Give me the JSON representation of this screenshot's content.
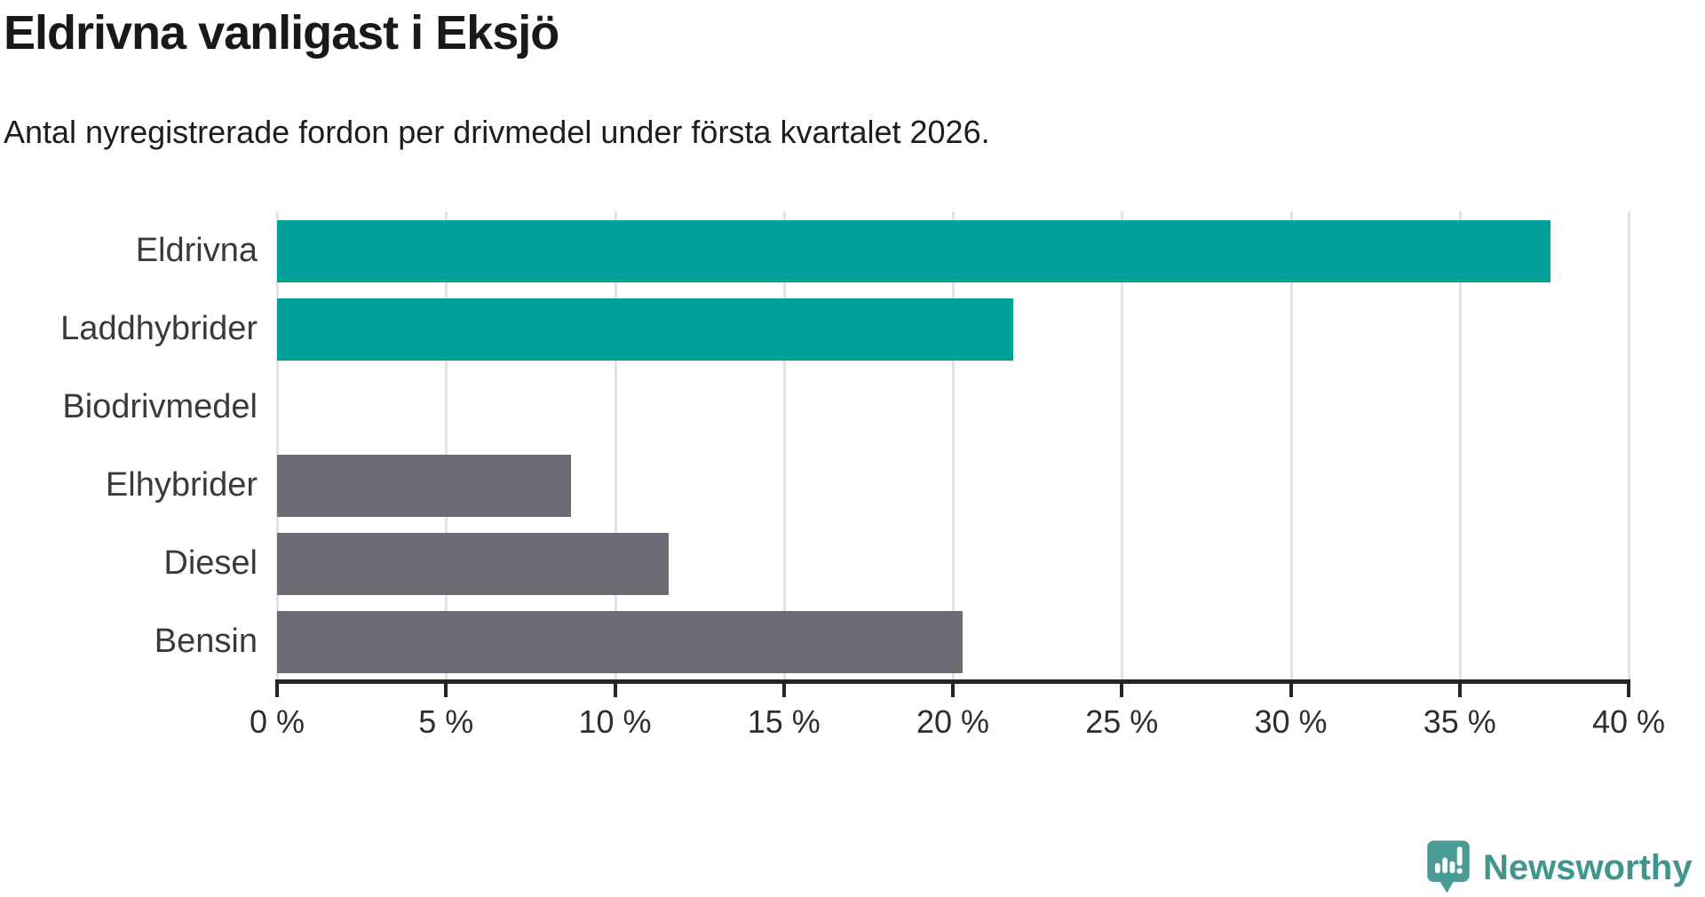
{
  "header": {
    "title": "Eldrivna vanligast i Eksjö",
    "subtitle": "Antal nyregistrerade fordon per drivmedel under första kvartalet 2026."
  },
  "chart_data": {
    "type": "bar",
    "orientation": "horizontal",
    "title": "Eldrivna vanligast i Eksjö",
    "subtitle": "Antal nyregistrerade fordon per drivmedel under första kvartalet 2026.",
    "categories": [
      "Eldrivna",
      "Laddhybrider",
      "Biodrivmedel",
      "Elhybrider",
      "Diesel",
      "Bensin"
    ],
    "values": [
      37.7,
      21.8,
      0,
      8.7,
      11.6,
      20.3
    ],
    "unit": "%",
    "bar_colors": [
      "#00a099",
      "#00a099",
      "#00a099",
      "#6c6c74",
      "#6c6c74",
      "#6c6c74"
    ],
    "xlim": [
      0,
      40
    ],
    "x_ticks": [
      0,
      5,
      10,
      15,
      20,
      25,
      30,
      35,
      40
    ],
    "x_tick_labels": [
      "0 %",
      "5 %",
      "10 %",
      "15 %",
      "20 %",
      "25 %",
      "30 %",
      "35 %",
      "40 %"
    ],
    "grid": true,
    "legend": false
  },
  "colors": {
    "accent_teal": "#00a099",
    "neutral_gray": "#6c6c74",
    "gridline": "#e2e2e2",
    "axis": "#252525",
    "text": "#1d1d1d",
    "logo_teal": "#4a9d97",
    "logo_text_teal": "#3f968f"
  },
  "logo": {
    "text": "Newsworthy",
    "icon": "newsworthy-pin-icon"
  }
}
